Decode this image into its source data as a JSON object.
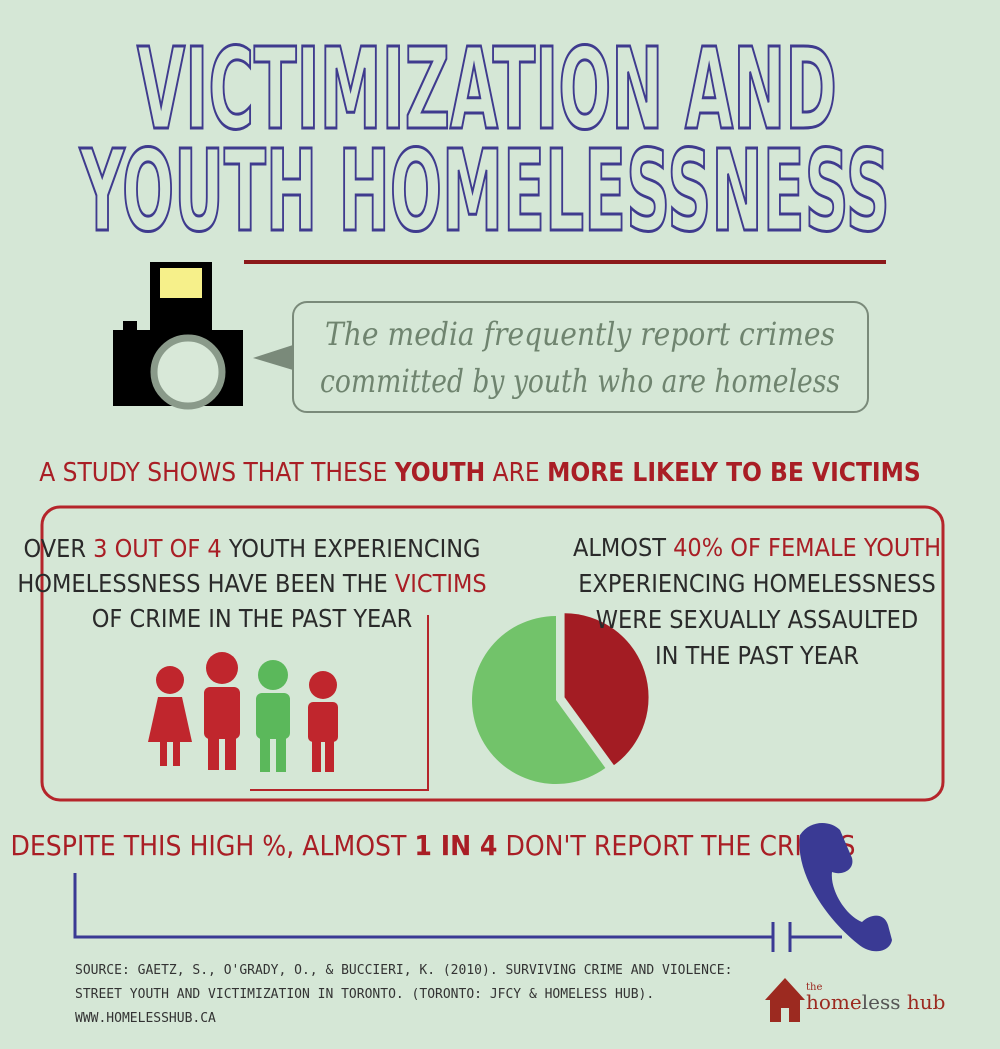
{
  "title": {
    "lines": [
      "VICTIMIZATION AND",
      "YOUTH HOMELESSNESS"
    ]
  },
  "callout": {
    "lines": [
      "The media frequently report crimes",
      "committed by youth who are homeless"
    ]
  },
  "headline": {
    "segments": [
      "A STUDY SHOWS THAT THESE",
      "YOUTH",
      "ARE",
      "MORE LIKELY TO BE VICTIMS"
    ]
  },
  "left_panel": {
    "lines": [
      [
        "OVER",
        "3 OUT OF 4",
        "YOUTH EXPERIENCING"
      ],
      [
        "HOMELESSNESS HAVE BEEN THE",
        "VICTIMS"
      ],
      [
        "OF CRIME IN THE PAST YEAR"
      ]
    ]
  },
  "right_panel": {
    "lines": [
      [
        "ALMOST",
        "40% OF FEMALE YOUTH"
      ],
      [
        "EXPERIENCING HOMELESSNESS"
      ],
      [
        "WERE SEXUALLY ASSAULTED"
      ],
      [
        "IN THE PAST YEAR"
      ]
    ]
  },
  "pie": {
    "values": [
      40,
      60
    ],
    "colors": [
      "#a31c23",
      "#72c36a"
    ]
  },
  "footer_statement": {
    "segments": [
      "DESPITE THIS HIGH %, ALMOST",
      "1 IN 4",
      "DON'T REPORT THE CRIMES"
    ]
  },
  "source": {
    "lines": [
      "SOURCE: GAETZ, S., O'GRADY, O., & BUCCIERI, K. (2010). SURVIVING CRIME  AND  VIOLENCE:",
      "STREET YOUTH AND VICTIMIZATION IN TORONTO. (TORONTO: JFCY & HOMELESS HUB).",
      "WWW.HOMELESSHUB.CA"
    ]
  },
  "logo": {
    "segments": [
      "the",
      "home",
      "less",
      "hub"
    ]
  }
}
